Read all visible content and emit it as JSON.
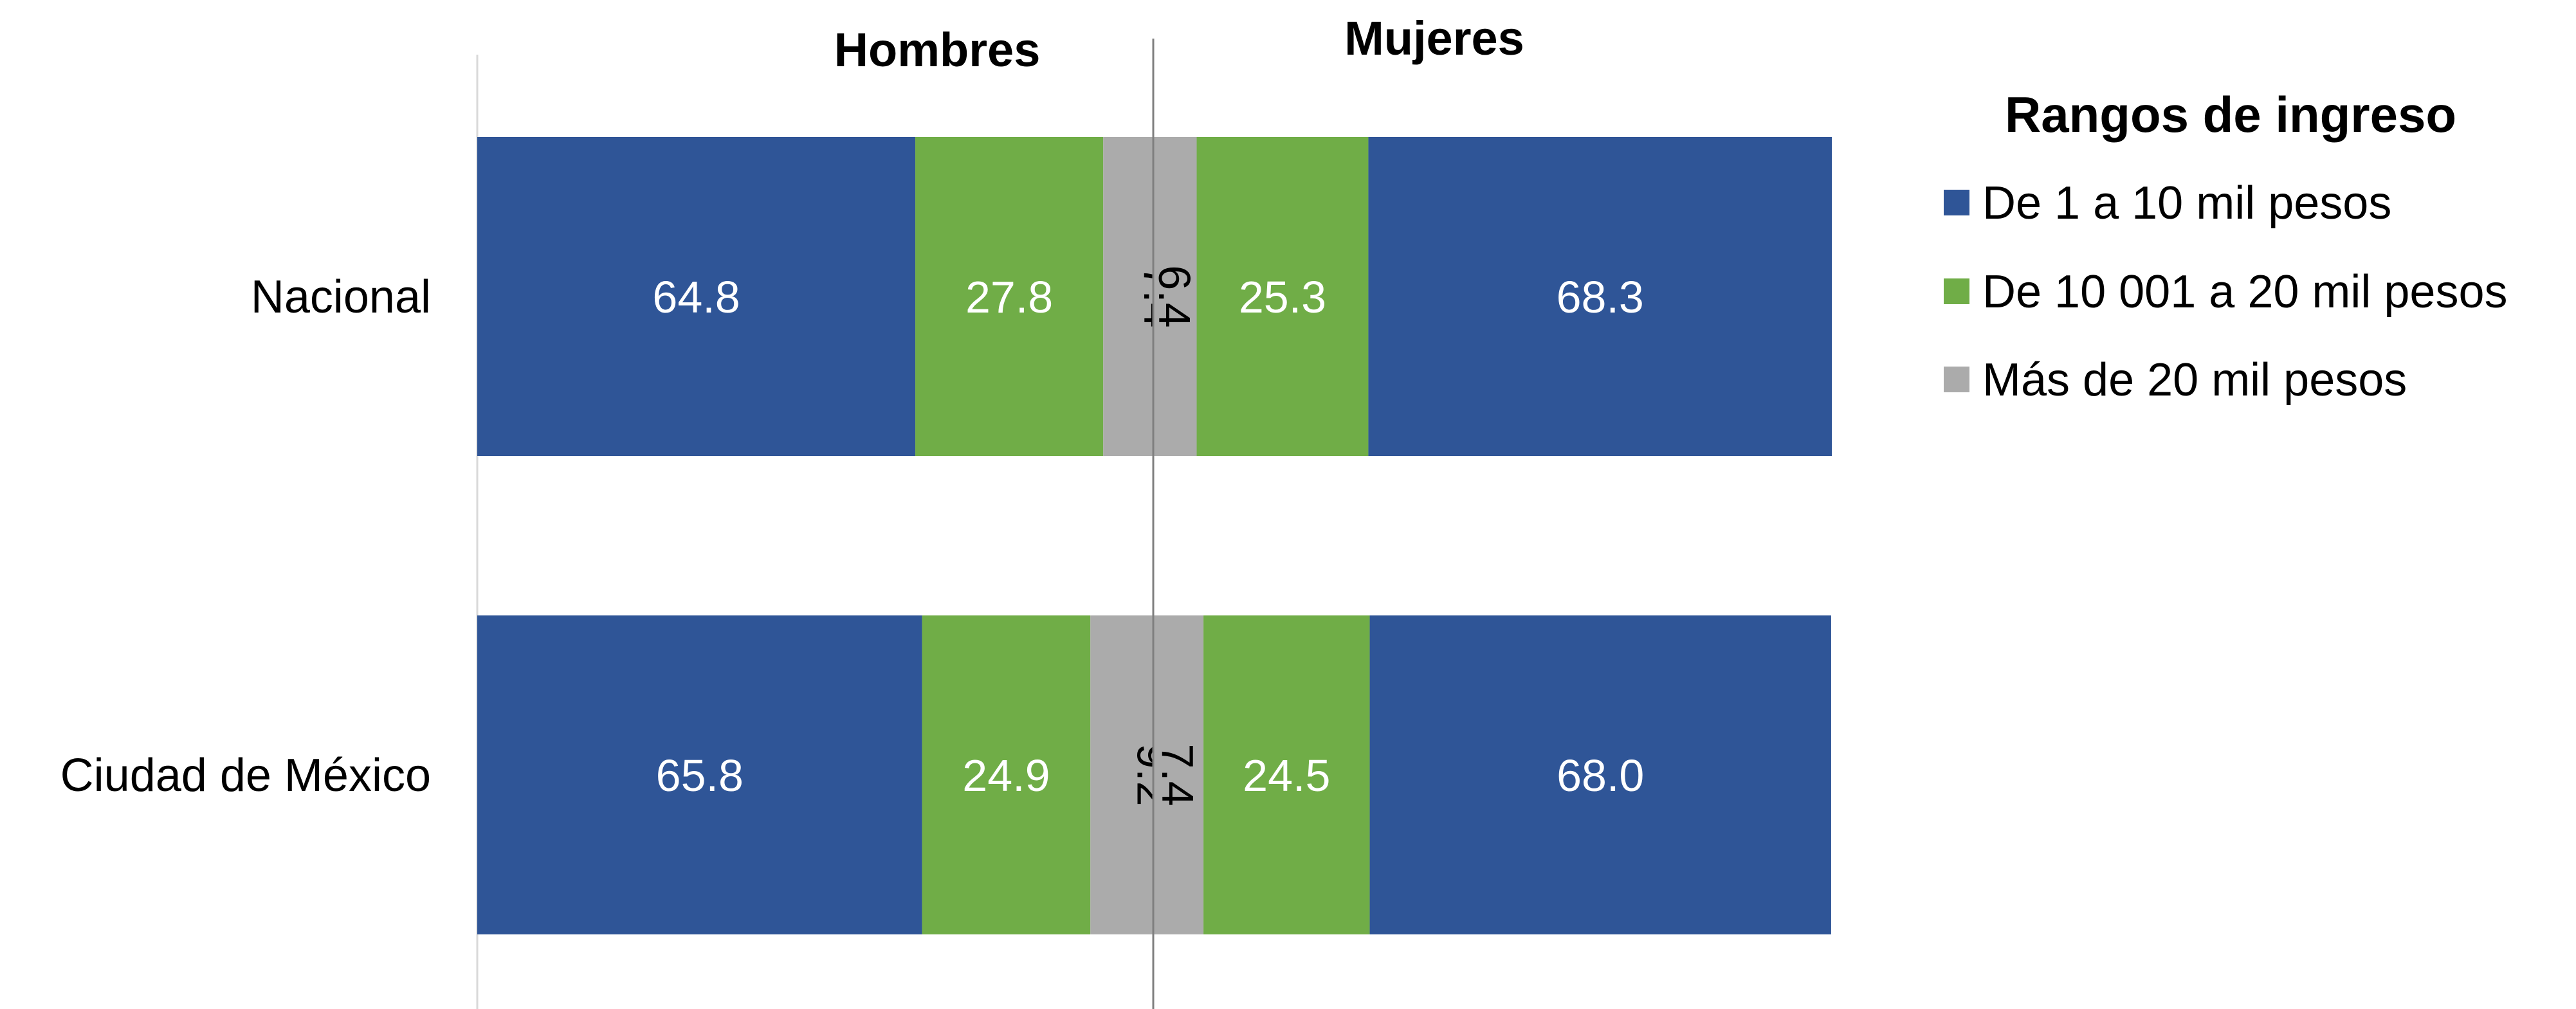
{
  "chart_data": {
    "type": "bar",
    "orientation": "horizontal",
    "stacked": true,
    "layout": "butterfly",
    "categories": [
      "Nacional",
      "Ciudad de México"
    ],
    "groups": [
      {
        "header": "Hombres",
        "side": "left",
        "series": [
          {
            "name": "De 1 a 10 mil pesos",
            "values": [
              64.8,
              65.8
            ]
          },
          {
            "name": "De 10 001 a 20 mil pesos",
            "values": [
              27.8,
              24.9
            ]
          },
          {
            "name": "Más de 20 mil pesos",
            "values": [
              7.4,
              9.2
            ]
          }
        ]
      },
      {
        "header": "Mujeres",
        "side": "right",
        "series": [
          {
            "name": "De 1 a 10 mil pesos",
            "values": [
              68.3,
              68.0
            ]
          },
          {
            "name": "De 10 001 a 20 mil pesos",
            "values": [
              25.3,
              24.5
            ]
          },
          {
            "name": "Más de 20 mil pesos",
            "values": [
              6.4,
              7.4
            ]
          }
        ]
      }
    ],
    "legend": {
      "title": "Rangos de ingreso",
      "position": "right",
      "items": [
        {
          "label": "De 1 a 10 mil pesos",
          "color": "#2F5597"
        },
        {
          "label": "De 10 001 a 20 mil pesos",
          "color": "#70AD47"
        },
        {
          "label": "Más de 20 mil pesos",
          "color": "#ABABAB"
        }
      ]
    },
    "label_colors": [
      "#FFFFFF",
      "#FFFFFF",
      "#000000"
    ],
    "xlim": [
      0,
      100
    ],
    "grid": false
  }
}
